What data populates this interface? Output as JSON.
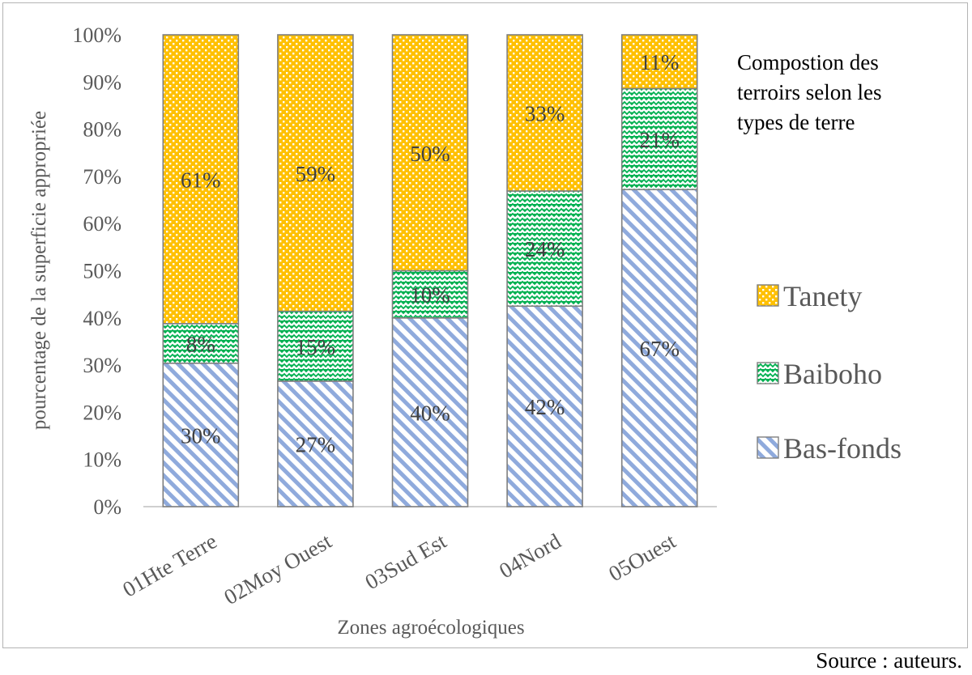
{
  "chart_data": {
    "type": "bar",
    "stacked": true,
    "percent_stacked": true,
    "categories": [
      "01Hte Terre",
      "02Moy Ouest",
      "03Sud Est",
      "04Nord",
      "05Ouest"
    ],
    "series": [
      {
        "name": "Bas-fonds",
        "values": [
          30.4,
          26.6,
          40.0,
          42.5,
          67.2
        ],
        "labels": [
          "30%",
          "27%",
          "40%",
          "42%",
          "67%"
        ],
        "color": "#8faadc",
        "pattern": "diagonal-stripes"
      },
      {
        "name": "Baiboho",
        "values": [
          8.4,
          14.8,
          10.0,
          24.4,
          21.4
        ],
        "labels": [
          "8%",
          "15%",
          "10%",
          "24%",
          "21%"
        ],
        "color": "#00b050",
        "pattern": "zigzag"
      },
      {
        "name": "Tanety",
        "values": [
          61.2,
          58.6,
          50.0,
          33.1,
          11.4
        ],
        "labels": [
          "61%",
          "59%",
          "50%",
          "33%",
          "11%"
        ],
        "color": "#ffc000",
        "pattern": "dots"
      }
    ],
    "ylim": [
      0,
      100
    ],
    "yticks": [
      "0%",
      "10%",
      "20%",
      "30%",
      "40%",
      "50%",
      "60%",
      "70%",
      "80%",
      "90%",
      "100%"
    ],
    "xlabel": "Zones agroécologiques",
    "ylabel": "pourcentage de la superficie appropriée",
    "grid": false,
    "legend_position": "right",
    "legend_order": [
      "Tanety",
      "Baiboho",
      "Bas-fonds"
    ]
  },
  "annotation": "Compostion des terroirs selon les types de terre",
  "annotation_lines": [
    "Compostion des",
    "terroirs selon les",
    "types de terre"
  ],
  "source": "Source : auteurs."
}
